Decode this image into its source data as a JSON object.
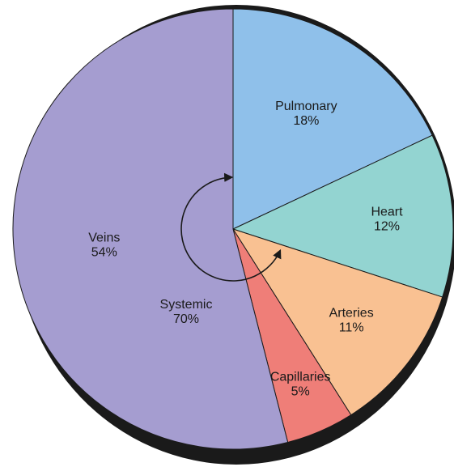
{
  "chart_data": {
    "type": "pie",
    "categories": [
      "Pulmonary",
      "Heart",
      "Arteries",
      "Capillaries",
      "Veins"
    ],
    "values": [
      18,
      12,
      11,
      5,
      54
    ],
    "value_labels": [
      "18%",
      "12%",
      "11%",
      "5%",
      "54%"
    ],
    "colors": [
      "#8fc0ea",
      "#93d4d1",
      "#f9c192",
      "#ef7e78",
      "#a59dd0"
    ],
    "annotations": [
      {
        "text": "Systemic",
        "value": 70,
        "value_label": "70%"
      }
    ]
  }
}
